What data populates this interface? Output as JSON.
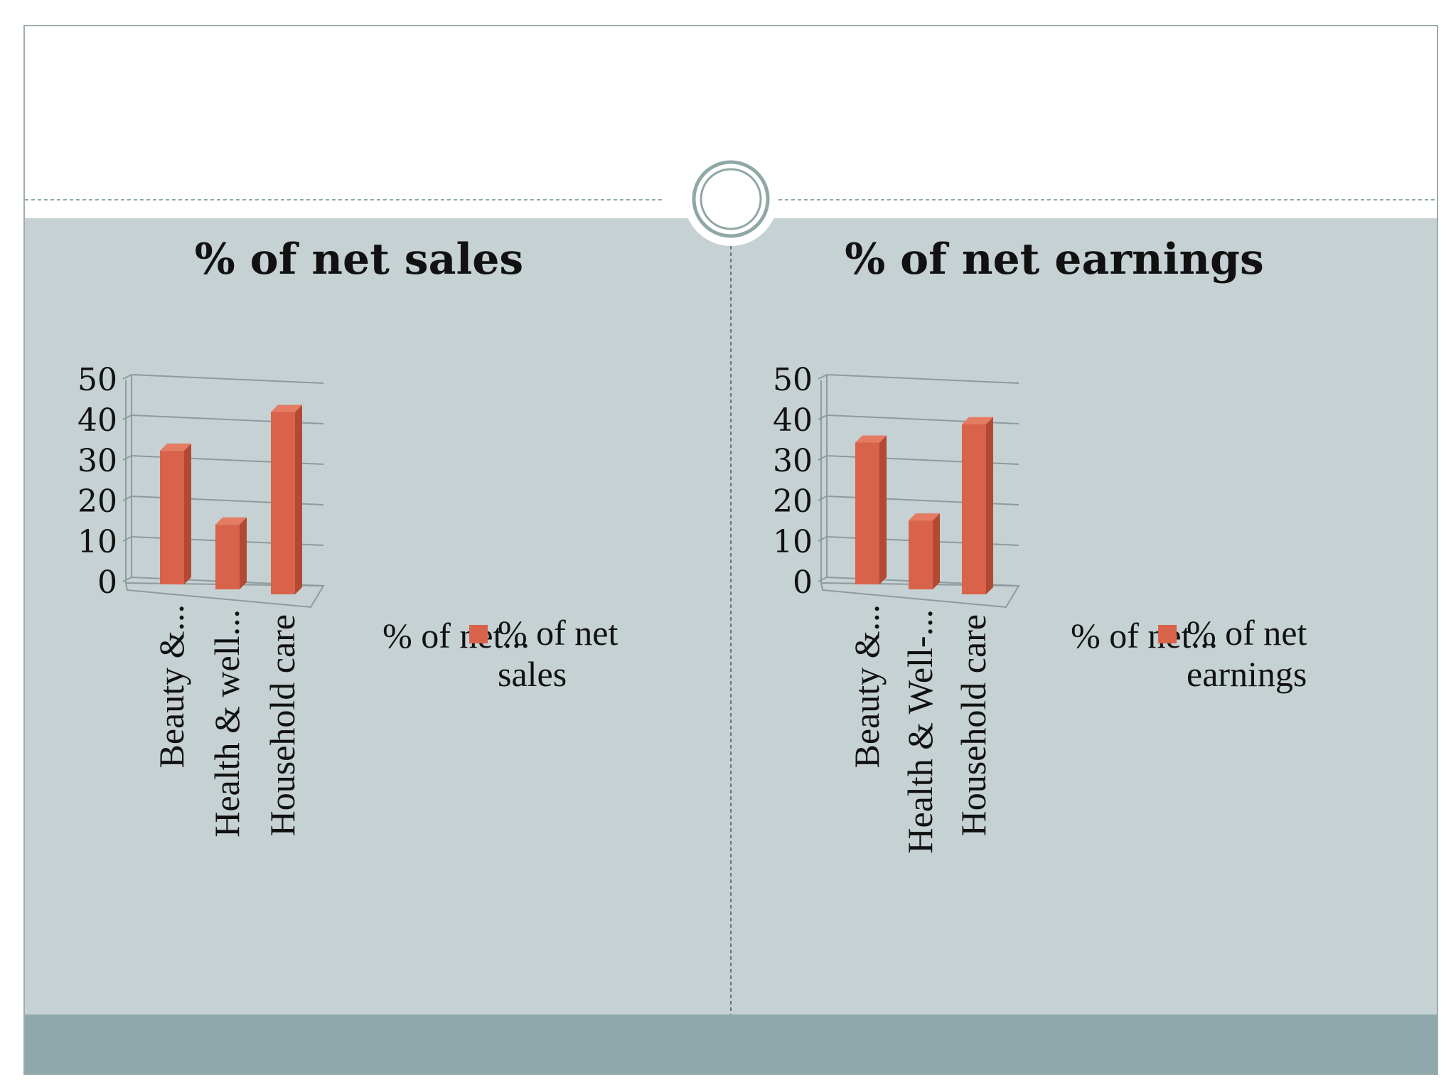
{
  "theme": {
    "content_bg": "#c6d1d4",
    "footer_bg": "#8ea9ab",
    "bar_front": "#d8634a",
    "bar_side": "#b24a33",
    "bar_top": "#e47b62",
    "circle_stroke": "#8fa8a6"
  },
  "chart_data": [
    {
      "type": "bar",
      "title": "% of net sales",
      "categories": [
        "Beauty &...",
        "Health & well...",
        "Household care"
      ],
      "series": [
        {
          "name": "% of net sales",
          "values": [
            33,
            16,
            45
          ]
        }
      ],
      "ylim": [
        0,
        50
      ],
      "yticks": [
        0,
        10,
        20,
        30,
        40,
        50
      ],
      "xlabel": "% of net...",
      "legend": {
        "position": "right",
        "labels": [
          "% of net",
          "sales"
        ]
      },
      "grid": true
    },
    {
      "type": "bar",
      "title": "% of net earnings",
      "categories": [
        "Beauty &...",
        "Health & Well-...",
        "Household care"
      ],
      "series": [
        {
          "name": "% of net earnings",
          "values": [
            35,
            17,
            42
          ]
        }
      ],
      "ylim": [
        0,
        50
      ],
      "yticks": [
        0,
        10,
        20,
        30,
        40,
        50
      ],
      "xlabel": "% of net...",
      "legend": {
        "position": "right",
        "labels": [
          "% of net",
          "earnings"
        ]
      },
      "grid": true
    }
  ]
}
